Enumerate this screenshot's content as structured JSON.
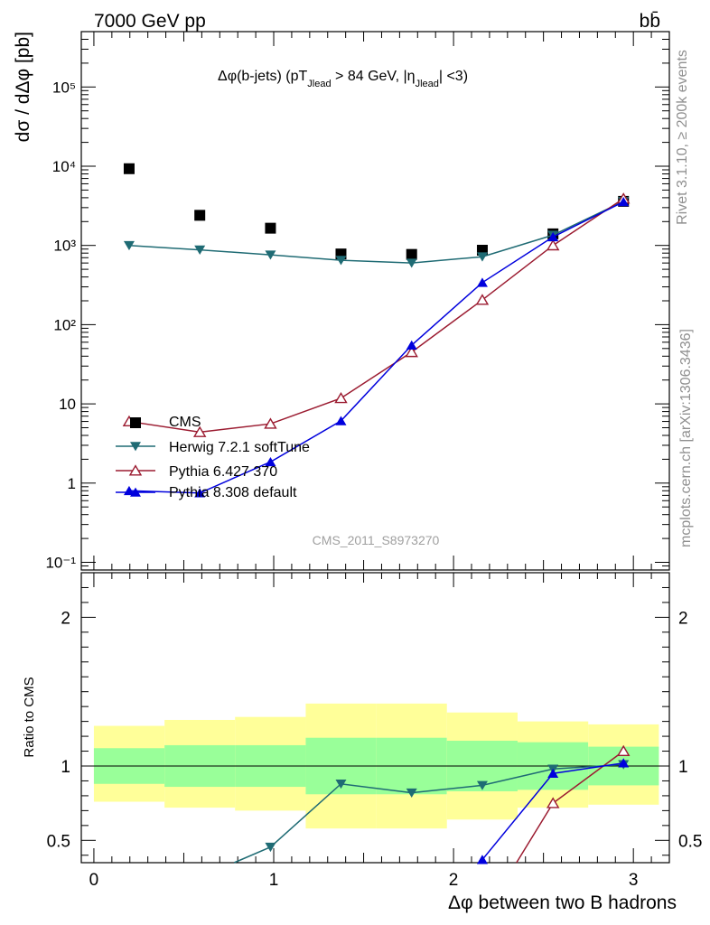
{
  "header": {
    "process": "7000 GeV pp",
    "final_state": "bb̄"
  },
  "side_labels": {
    "rivet": "Rivet 3.1.10, ≥ 200k events",
    "mcplots": "mcplots.cern.ch [arXiv:1306.3436]"
  },
  "analysis_id": "CMS_2011_S8973270",
  "colors": {
    "cms": "#000000",
    "herwig": "#1f6b74",
    "pythia6": "#9b1b30",
    "pythia8": "#0000dd",
    "band_inner": "#99ff99",
    "band_outer": "#ffff99"
  },
  "chart_data": [
    {
      "type": "scatter",
      "panel": "main",
      "title_parts": {
        "base": "Δφ(b-jets) (pT",
        "sub1": "Jlead",
        "mid": " >  84 GeV, |η",
        "sub2": "Jlead",
        "end": "| <3)"
      },
      "ylabel": "dσ / dΔφ [pb]",
      "yscale": "log",
      "ylim": [
        0.08,
        500000
      ],
      "xlim": [
        -0.07,
        3.2
      ],
      "y_ticks": [
        "10⁻¹",
        "1",
        "10",
        "10²",
        "10³",
        "10⁴",
        "10⁵"
      ],
      "legend_position": "lower-left",
      "series": [
        {
          "name": "CMS",
          "marker": "square",
          "x": [
            0.196,
            0.589,
            0.982,
            1.374,
            1.767,
            2.16,
            2.553,
            2.945
          ],
          "y": [
            9300,
            2400,
            1650,
            780,
            770,
            870,
            1400,
            3600
          ]
        },
        {
          "name": "Herwig 7.2.1 softTune",
          "marker": "triangle-down",
          "x": [
            0.196,
            0.589,
            0.982,
            1.374,
            1.767,
            2.16,
            2.553,
            2.945
          ],
          "y": [
            1000,
            880,
            760,
            650,
            600,
            720,
            1350,
            3600
          ]
        },
        {
          "name": "Pythia 6.427 370",
          "marker": "triangle-up-open",
          "x": [
            0.196,
            0.589,
            0.982,
            1.374,
            1.767,
            2.16,
            2.553,
            2.945
          ],
          "y": [
            6,
            4.4,
            5.6,
            11.8,
            45,
            205,
            1000,
            3900
          ]
        },
        {
          "name": "Pythia 8.308 default",
          "marker": "triangle-up",
          "x": [
            0.196,
            0.589,
            0.982,
            1.374,
            1.767,
            2.16,
            2.553,
            2.945
          ],
          "y": [
            0.8,
            0.75,
            1.85,
            6.1,
            55,
            340,
            1280,
            3550
          ]
        }
      ]
    },
    {
      "type": "line",
      "panel": "ratio",
      "ylabel": "Ratio to CMS",
      "xlabel": "Δφ between two B hadrons",
      "ylim": [
        0.35,
        2.3
      ],
      "xlim": [
        -0.07,
        3.2
      ],
      "x_ticks": [
        "0",
        "1",
        "2",
        "3"
      ],
      "y_ticks": [
        "0.5",
        "1",
        "2"
      ],
      "bands": {
        "edges": [
          0,
          0.393,
          0.785,
          1.178,
          1.571,
          1.963,
          2.356,
          2.749,
          3.1416
        ],
        "inner_low": [
          0.88,
          0.86,
          0.86,
          0.81,
          0.81,
          0.83,
          0.84,
          0.87
        ],
        "inner_high": [
          1.12,
          1.14,
          1.14,
          1.19,
          1.19,
          1.17,
          1.16,
          1.13
        ],
        "outer_low": [
          0.76,
          0.72,
          0.7,
          0.58,
          0.58,
          0.64,
          0.72,
          0.74
        ],
        "outer_high": [
          1.27,
          1.31,
          1.33,
          1.42,
          1.42,
          1.36,
          1.3,
          1.28
        ]
      },
      "series": [
        {
          "name": "Herwig 7.2.1 softTune",
          "x": [
            0.982,
            1.374,
            1.767,
            2.16,
            2.553,
            2.945
          ],
          "y": [
            0.455,
            0.88,
            0.82,
            0.87,
            0.98,
            1.01
          ],
          "extend_from": [
            0.78,
            0.35
          ]
        },
        {
          "name": "Pythia 6.427 370",
          "x": [
            2.553,
            2.945
          ],
          "y": [
            0.75,
            1.1
          ],
          "extend_from": [
            2.35,
            0.35
          ]
        },
        {
          "name": "Pythia 8.308 default",
          "x": [
            2.16,
            2.553,
            2.945
          ],
          "y": [
            0.37,
            0.95,
            1.02
          ],
          "extend_from": [
            2.15,
            0.35
          ]
        }
      ]
    }
  ]
}
